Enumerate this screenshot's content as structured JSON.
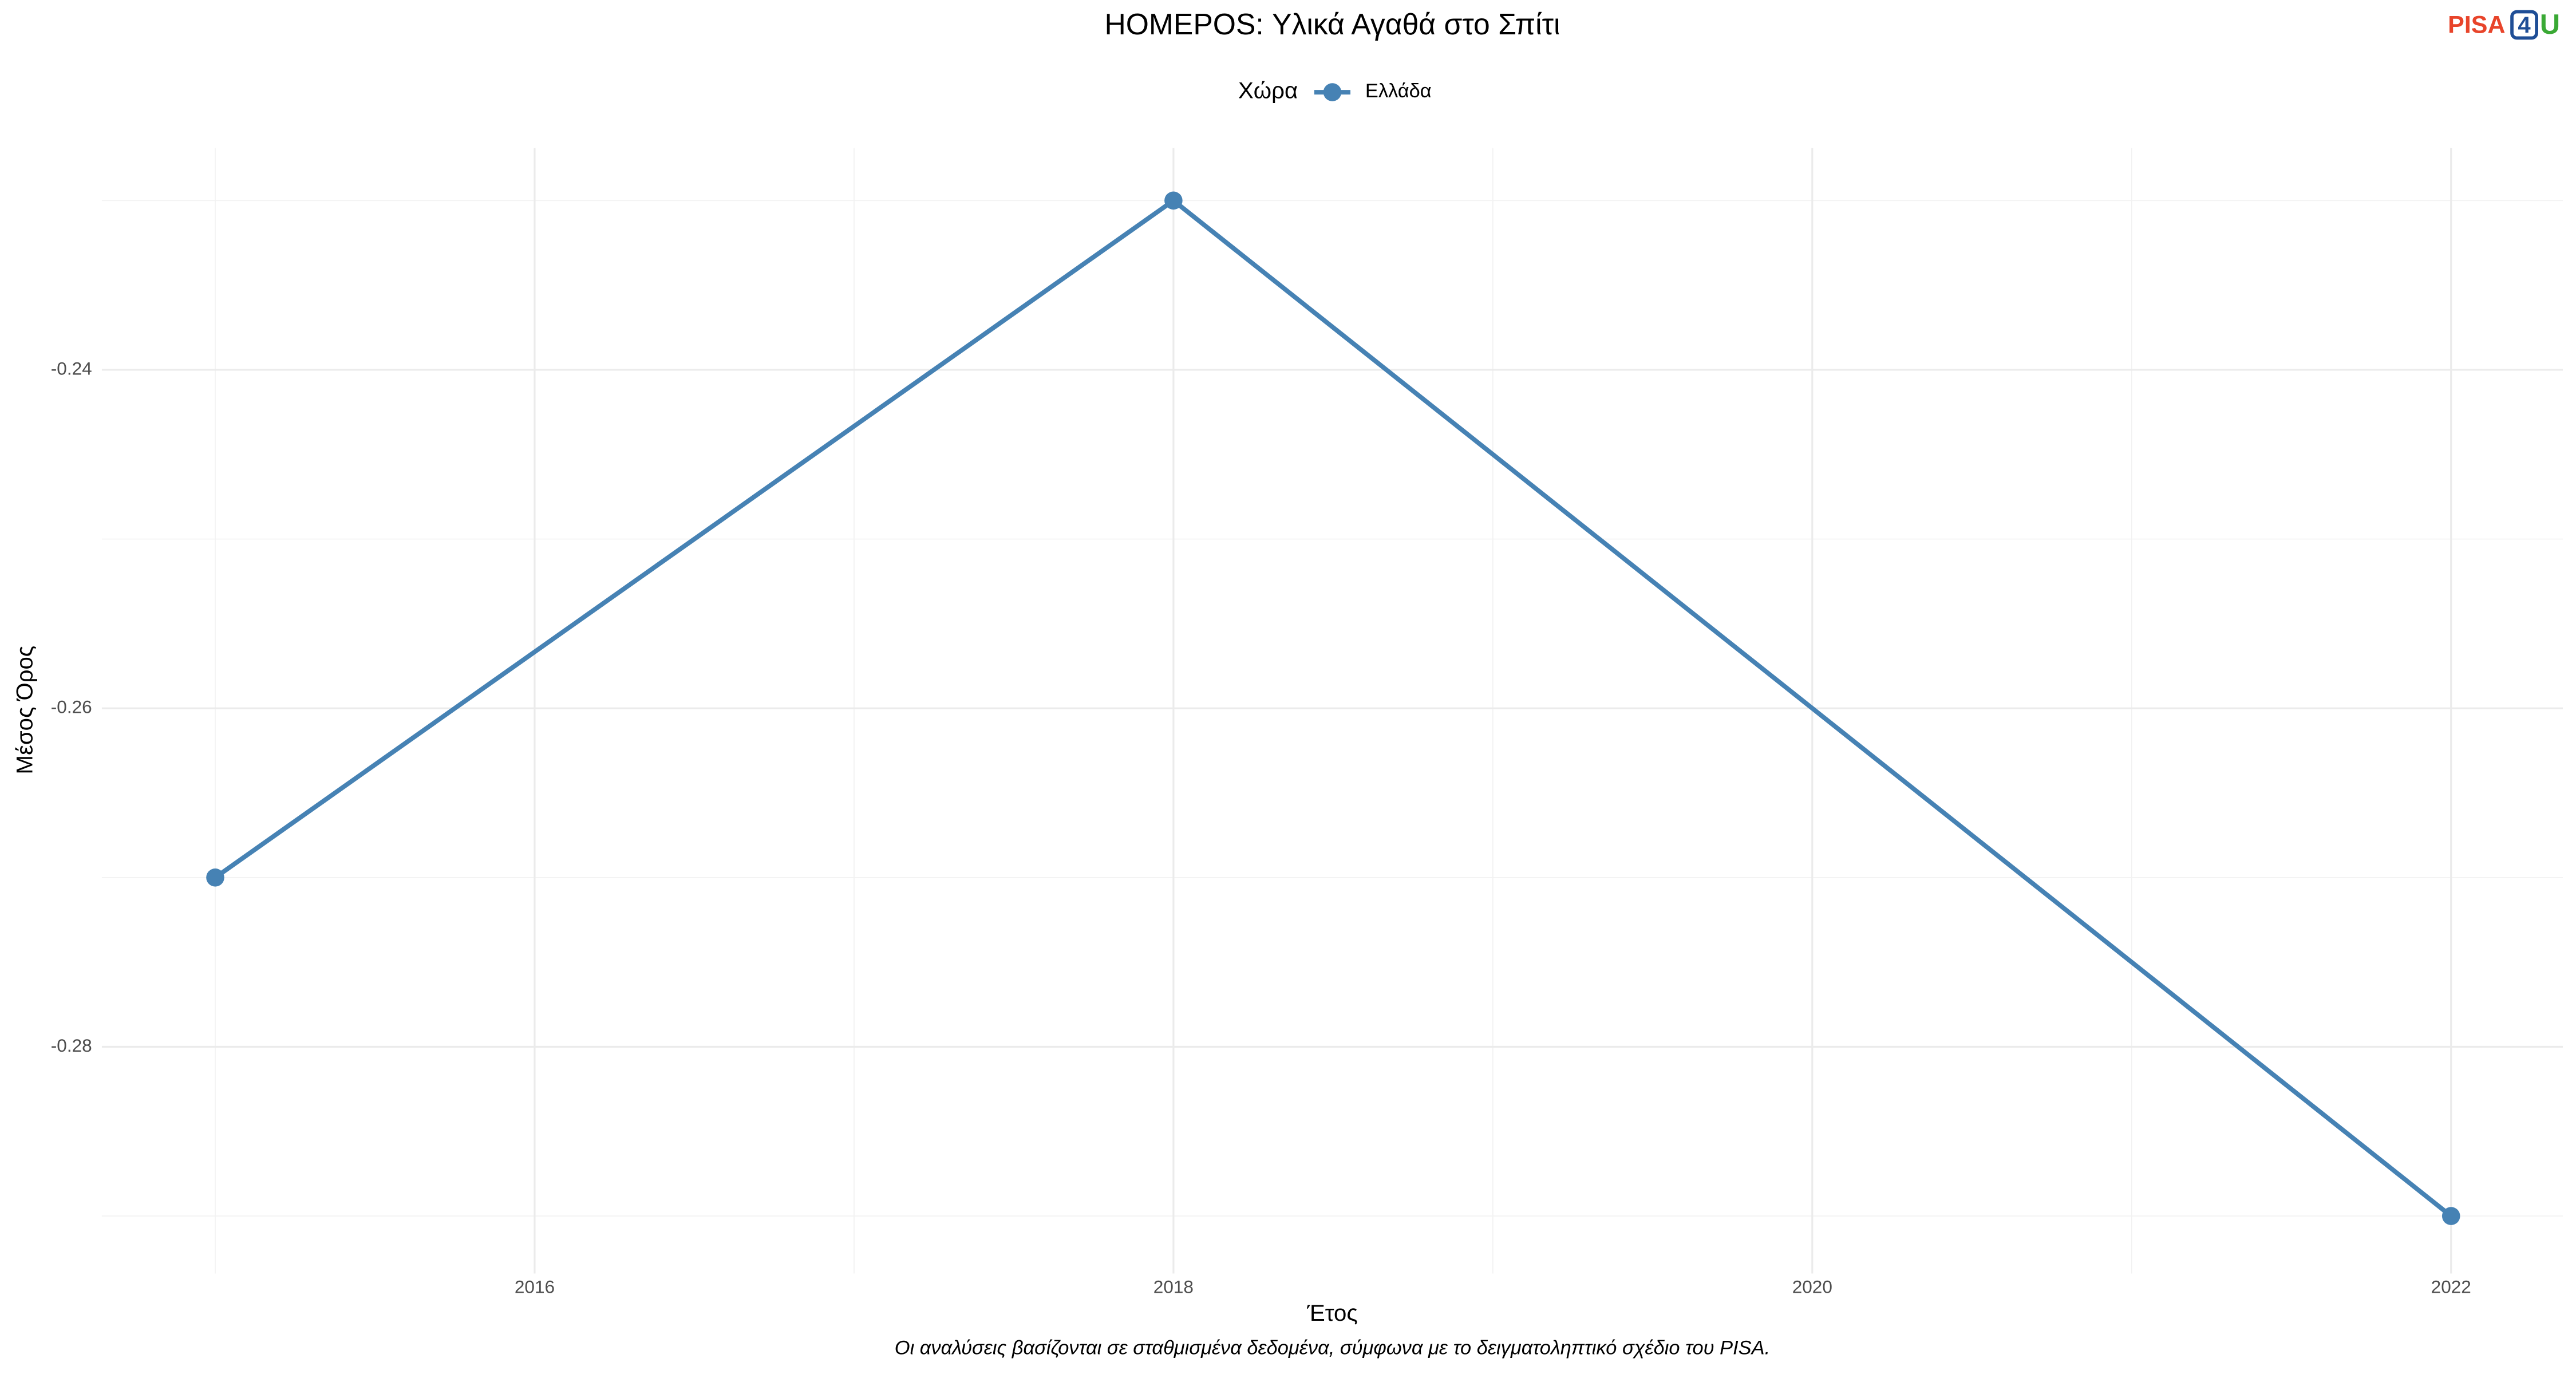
{
  "chart_data": {
    "type": "line",
    "title": "HOMEPOS: Υλικά Αγαθά στο Σπίτι",
    "logo": [
      "PISA",
      "4",
      "U"
    ],
    "legend_title": "Χώρα",
    "x_label": "Έτος",
    "y_label": "Μέσος Όρος",
    "caption": "Οι αναλύσεις βασίζονται σε σταθμισμένα δεδομένα, σύμφωνα με το δειγματοληπτικό σχέδιο του PISA.",
    "x": [
      2015,
      2018,
      2022
    ],
    "series": [
      {
        "name": "Ελλάδα",
        "color": "#4682b4",
        "values": [
          -0.27,
          -0.23,
          -0.29
        ]
      }
    ],
    "xlim": [
      2014.645,
      2022.35
    ],
    "ylim": [
      -0.2934,
      -0.2269
    ],
    "xticks": [
      2016,
      2018,
      2020,
      2022
    ],
    "yticks": [
      -0.28,
      -0.26,
      -0.24
    ],
    "grid": true
  }
}
